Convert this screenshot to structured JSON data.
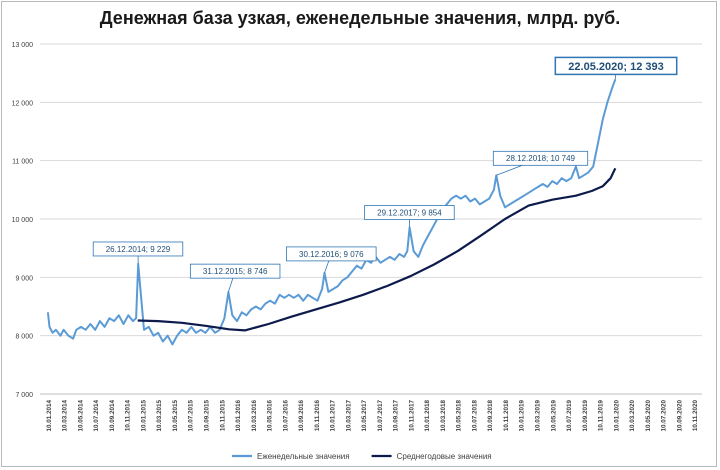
{
  "chart_data": {
    "type": "line",
    "title": "Денежная база узкая, еженедельные значения, млрд. руб.",
    "ylim": [
      7000,
      13000
    ],
    "yticks": [
      7000,
      8000,
      9000,
      10000,
      11000,
      12000,
      13000
    ],
    "ytick_labels": [
      "7 000",
      "8 000",
      "9 000",
      "10 000",
      "11 000",
      "12 000",
      "13 000"
    ],
    "xtick_labels": [
      "10.01.2014",
      "10.03.2014",
      "10.05.2014",
      "10.07.2014",
      "10.09.2014",
      "10.11.2014",
      "10.01.2015",
      "10.03.2015",
      "10.05.2015",
      "10.07.2015",
      "10.09.2015",
      "10.11.2015",
      "10.01.2016",
      "10.03.2016",
      "10.05.2016",
      "10.07.2016",
      "10.09.2016",
      "10.11.2016",
      "10.01.2017",
      "10.03.2017",
      "10.05.2017",
      "10.07.2017",
      "10.09.2017",
      "10.11.2017",
      "10.01.2018",
      "10.03.2018",
      "10.05.2018",
      "10.07.2018",
      "10.09.2018",
      "10.11.2018",
      "10.01.2019",
      "10.03.2019",
      "10.05.2019",
      "10.07.2019",
      "10.09.2019",
      "10.11.2019",
      "10.01.2020",
      "10.03.2020",
      "10.05.2020",
      "10.07.2020",
      "10.09.2020",
      "10.11.2020"
    ],
    "grid": true,
    "legend_placement": "bottom",
    "series": [
      {
        "name": "Еженедельные значения",
        "color": "#5b9bd5",
        "points": [
          [
            0,
            8400
          ],
          [
            0.1,
            8150
          ],
          [
            0.3,
            8050
          ],
          [
            0.5,
            8100
          ],
          [
            0.8,
            8000
          ],
          [
            1.0,
            8100
          ],
          [
            1.3,
            8000
          ],
          [
            1.6,
            7950
          ],
          [
            1.8,
            8100
          ],
          [
            2.1,
            8150
          ],
          [
            2.4,
            8100
          ],
          [
            2.7,
            8200
          ],
          [
            3.0,
            8100
          ],
          [
            3.3,
            8250
          ],
          [
            3.6,
            8150
          ],
          [
            3.9,
            8300
          ],
          [
            4.2,
            8250
          ],
          [
            4.5,
            8350
          ],
          [
            4.8,
            8200
          ],
          [
            5.1,
            8350
          ],
          [
            5.4,
            8250
          ],
          [
            5.6,
            8300
          ],
          [
            5.73,
            9229
          ],
          [
            5.9,
            8700
          ],
          [
            6.1,
            8100
          ],
          [
            6.4,
            8150
          ],
          [
            6.7,
            8000
          ],
          [
            7.0,
            8050
          ],
          [
            7.3,
            7900
          ],
          [
            7.6,
            8000
          ],
          [
            7.9,
            7850
          ],
          [
            8.2,
            8000
          ],
          [
            8.5,
            8100
          ],
          [
            8.8,
            8050
          ],
          [
            9.1,
            8150
          ],
          [
            9.4,
            8050
          ],
          [
            9.7,
            8100
          ],
          [
            10.0,
            8050
          ],
          [
            10.3,
            8150
          ],
          [
            10.6,
            8050
          ],
          [
            10.9,
            8100
          ],
          [
            11.2,
            8300
          ],
          [
            11.45,
            8746
          ],
          [
            11.7,
            8350
          ],
          [
            12.0,
            8250
          ],
          [
            12.3,
            8400
          ],
          [
            12.6,
            8350
          ],
          [
            12.9,
            8450
          ],
          [
            13.2,
            8500
          ],
          [
            13.5,
            8450
          ],
          [
            13.8,
            8550
          ],
          [
            14.1,
            8600
          ],
          [
            14.4,
            8550
          ],
          [
            14.7,
            8700
          ],
          [
            15.0,
            8650
          ],
          [
            15.3,
            8700
          ],
          [
            15.6,
            8650
          ],
          [
            15.9,
            8700
          ],
          [
            16.2,
            8600
          ],
          [
            16.5,
            8700
          ],
          [
            16.8,
            8650
          ],
          [
            17.1,
            8600
          ],
          [
            17.4,
            8800
          ],
          [
            17.55,
            9076
          ],
          [
            17.8,
            8750
          ],
          [
            18.1,
            8800
          ],
          [
            18.4,
            8850
          ],
          [
            18.7,
            8950
          ],
          [
            19.0,
            9000
          ],
          [
            19.3,
            9100
          ],
          [
            19.6,
            9200
          ],
          [
            19.9,
            9150
          ],
          [
            20.2,
            9300
          ],
          [
            20.5,
            9250
          ],
          [
            20.8,
            9350
          ],
          [
            21.1,
            9250
          ],
          [
            21.4,
            9300
          ],
          [
            21.7,
            9350
          ],
          [
            22.0,
            9300
          ],
          [
            22.3,
            9400
          ],
          [
            22.6,
            9350
          ],
          [
            22.8,
            9450
          ],
          [
            22.95,
            9854
          ],
          [
            23.2,
            9450
          ],
          [
            23.5,
            9350
          ],
          [
            23.8,
            9550
          ],
          [
            24.1,
            9700
          ],
          [
            24.4,
            9850
          ],
          [
            24.7,
            10000
          ],
          [
            25.0,
            10150
          ],
          [
            25.3,
            10250
          ],
          [
            25.6,
            10350
          ],
          [
            25.9,
            10400
          ],
          [
            26.2,
            10350
          ],
          [
            26.5,
            10400
          ],
          [
            26.8,
            10300
          ],
          [
            27.1,
            10350
          ],
          [
            27.4,
            10250
          ],
          [
            27.7,
            10300
          ],
          [
            28.0,
            10350
          ],
          [
            28.3,
            10500
          ],
          [
            28.45,
            10749
          ],
          [
            28.7,
            10400
          ],
          [
            29.0,
            10200
          ],
          [
            29.3,
            10250
          ],
          [
            29.6,
            10300
          ],
          [
            29.9,
            10350
          ],
          [
            30.2,
            10400
          ],
          [
            30.5,
            10450
          ],
          [
            30.8,
            10500
          ],
          [
            31.1,
            10550
          ],
          [
            31.4,
            10600
          ],
          [
            31.7,
            10550
          ],
          [
            32.0,
            10650
          ],
          [
            32.3,
            10600
          ],
          [
            32.6,
            10700
          ],
          [
            32.9,
            10650
          ],
          [
            33.2,
            10700
          ],
          [
            33.5,
            10900
          ],
          [
            33.7,
            10700
          ],
          [
            34.0,
            10750
          ],
          [
            34.3,
            10800
          ],
          [
            34.6,
            10900
          ],
          [
            34.9,
            11300
          ],
          [
            35.2,
            11700
          ],
          [
            35.5,
            12000
          ],
          [
            35.8,
            12250
          ],
          [
            36.0,
            12393
          ]
        ]
      },
      {
        "name": "Среднегодовые значения",
        "color": "#0d1b4c",
        "points": [
          [
            5.7,
            8260
          ],
          [
            7,
            8250
          ],
          [
            8.5,
            8220
          ],
          [
            10,
            8170
          ],
          [
            11.5,
            8110
          ],
          [
            12.5,
            8090
          ],
          [
            14,
            8200
          ],
          [
            15.5,
            8330
          ],
          [
            17,
            8450
          ],
          [
            18.5,
            8570
          ],
          [
            20,
            8700
          ],
          [
            21.5,
            8850
          ],
          [
            23,
            9020
          ],
          [
            24.5,
            9220
          ],
          [
            26,
            9450
          ],
          [
            27.5,
            9720
          ],
          [
            29,
            10000
          ],
          [
            30.5,
            10230
          ],
          [
            32,
            10330
          ],
          [
            33.5,
            10400
          ],
          [
            34.5,
            10480
          ],
          [
            35.2,
            10560
          ],
          [
            35.7,
            10700
          ],
          [
            36,
            10870
          ]
        ]
      }
    ],
    "annotations": [
      {
        "text": "26.12.2014; 9 229",
        "x": 5.73,
        "y": 9229
      },
      {
        "text": "31.12.2015; 8 746",
        "x": 11.45,
        "y": 8746
      },
      {
        "text": "30.12.2016; 9 076",
        "x": 17.55,
        "y": 9076
      },
      {
        "text": "29.12.2017; 9 854",
        "x": 22.95,
        "y": 9854
      },
      {
        "text": "28.12.2018; 10 749",
        "x": 28.45,
        "y": 10749
      },
      {
        "text": "22.05.2020; 12 393",
        "x": 36.0,
        "y": 12393
      }
    ]
  }
}
